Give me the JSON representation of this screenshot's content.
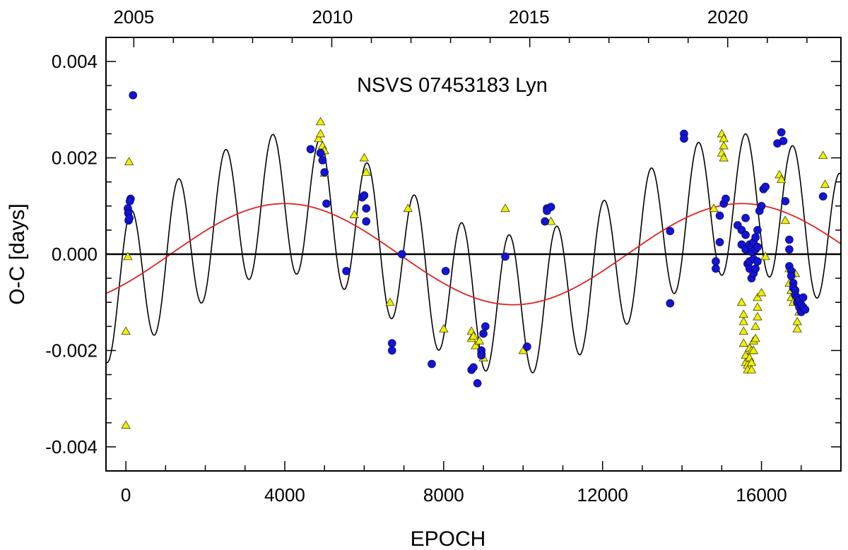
{
  "chart_data": {
    "type": "scatter",
    "title": "NSVS 07453183 Lyn",
    "xlabel": "EPOCH",
    "ylabel": "O-C [days]",
    "xlim": [
      -500,
      18000
    ],
    "ylim": [
      -0.0045,
      0.0045
    ],
    "x_ticks": [
      0,
      4000,
      8000,
      12000,
      16000
    ],
    "x_tick_labels": [
      "0",
      "4000",
      "8000",
      "12000",
      "16000"
    ],
    "y_ticks": [
      -0.004,
      -0.002,
      0.0,
      0.002,
      0.004
    ],
    "y_tick_labels": [
      "-0.004",
      "-0.002",
      "0.000",
      "0.002",
      "0.004"
    ],
    "top_axis": {
      "label": "",
      "ticks": [
        {
          "epoch": 200,
          "label": "2005"
        },
        {
          "epoch": 5200,
          "label": "2010"
        },
        {
          "epoch": 10150,
          "label": "2015"
        },
        {
          "epoch": 15150,
          "label": "2020"
        }
      ]
    },
    "grid": false,
    "zero_line": true,
    "colors": {
      "primary": "#1414d2",
      "secondary": "#f0f000",
      "secondary_edge": "#404000",
      "long_fit": "#e02020",
      "short_fit": "#000000"
    },
    "fit_curves": [
      {
        "kind": "long-period",
        "amplitude": 0.00105,
        "period_epochs": 11500,
        "phase_epoch": 4000,
        "offset": 0.0
      },
      {
        "kind": "long-plus-short",
        "amplitude": 0.00145,
        "period_epochs": 1190,
        "phase_epoch": 1320,
        "range": [
          -500,
          18000
        ]
      }
    ],
    "series": [
      {
        "marker": "circle",
        "points": [
          [
            50,
            0.00095
          ],
          [
            60,
            0.00085
          ],
          [
            70,
            0.0007
          ],
          [
            90,
            0.00075
          ],
          [
            120,
            0.00115
          ],
          [
            100,
            0.0011
          ],
          [
            180,
            0.0033
          ],
          [
            4650,
            0.00218
          ],
          [
            4900,
            0.0021
          ],
          [
            4950,
            0.00195
          ],
          [
            5000,
            0.0017
          ],
          [
            5050,
            0.00105
          ],
          [
            5550,
            -0.00035
          ],
          [
            5950,
            0.00118
          ],
          [
            6000,
            0.00122
          ],
          [
            6050,
            0.00095
          ],
          [
            6050,
            0.00068
          ],
          [
            6700,
            -0.00185
          ],
          [
            6700,
            -0.002
          ],
          [
            6950,
            0.0
          ],
          [
            7700,
            -0.00228
          ],
          [
            8050,
            -0.00035
          ],
          [
            8700,
            -0.0024
          ],
          [
            8750,
            -0.00235
          ],
          [
            8850,
            -0.00268
          ],
          [
            8950,
            -0.002
          ],
          [
            8950,
            -0.0021
          ],
          [
            9000,
            -0.00165
          ],
          [
            9050,
            -0.0015
          ],
          [
            9550,
            -5e-05
          ],
          [
            10100,
            -0.00192
          ],
          [
            10550,
            0.00068
          ],
          [
            10600,
            0.00095
          ],
          [
            10700,
            0.00098
          ],
          [
            10600,
            0.0009
          ],
          [
            13700,
            0.00048
          ],
          [
            13700,
            -0.00102
          ],
          [
            14050,
            0.0025
          ],
          [
            14050,
            0.0024
          ],
          [
            14850,
            -0.0003
          ],
          [
            14850,
            -0.00015
          ],
          [
            14950,
            0.00025
          ],
          [
            14950,
            0.0008
          ],
          [
            15050,
            0.00105
          ],
          [
            15100,
            0.00115
          ],
          [
            15400,
            0.0006
          ],
          [
            15500,
            0.0005
          ],
          [
            15500,
            0.0002
          ],
          [
            15600,
            0.00075
          ],
          [
            15600,
            0.0004
          ],
          [
            15600,
            0.0001
          ],
          [
            15650,
            -0.0002
          ],
          [
            15700,
            -0.0003
          ],
          [
            15700,
            -0.00015
          ],
          [
            15700,
            0.0002
          ],
          [
            15750,
            -0.0005
          ],
          [
            15750,
            5e-05
          ],
          [
            15750,
            0.00015
          ],
          [
            15800,
            -0.0004
          ],
          [
            15800,
            -0.0001
          ],
          [
            15800,
            0.00025
          ],
          [
            15850,
            -0.0003
          ],
          [
            15850,
            0.0001
          ],
          [
            15850,
            0.00035
          ],
          [
            15900,
            -0.00015
          ],
          [
            15900,
            0.00015
          ],
          [
            15900,
            0.0005
          ],
          [
            15950,
            0.0009
          ],
          [
            16000,
            0.001
          ],
          [
            16050,
            0.00135
          ],
          [
            16100,
            0.0014
          ],
          [
            16400,
            0.0023
          ],
          [
            16500,
            0.00253
          ],
          [
            16550,
            0.00235
          ],
          [
            16600,
            0.0011
          ],
          [
            16700,
            0.0003
          ],
          [
            16700,
            0.0001
          ],
          [
            16700,
            -0.00025
          ],
          [
            16750,
            -0.00035
          ],
          [
            16750,
            -0.00045
          ],
          [
            16800,
            -0.0006
          ],
          [
            16800,
            -0.0007
          ],
          [
            16850,
            -0.00075
          ],
          [
            16850,
            -0.00085
          ],
          [
            16900,
            -0.0009
          ],
          [
            16900,
            -0.001
          ],
          [
            16950,
            -0.00095
          ],
          [
            16950,
            -0.0011
          ],
          [
            17000,
            -0.00105
          ],
          [
            17000,
            -0.0012
          ],
          [
            17050,
            -0.0011
          ],
          [
            17050,
            -0.0009
          ],
          [
            17100,
            -0.00115
          ],
          [
            17550,
            0.0012
          ]
        ]
      },
      {
        "marker": "triangle",
        "points": [
          [
            0,
            -0.0016
          ],
          [
            0,
            -0.00355
          ],
          [
            50,
            -5e-05
          ],
          [
            80,
            0.00192
          ],
          [
            4850,
            0.0024
          ],
          [
            4900,
            0.0025
          ],
          [
            4900,
            0.00275
          ],
          [
            4950,
            0.00225
          ],
          [
            5000,
            0.00215
          ],
          [
            5000,
            0.00168
          ],
          [
            5750,
            0.00082
          ],
          [
            6000,
            0.002
          ],
          [
            6050,
            0.0017
          ],
          [
            6650,
            -0.001
          ],
          [
            7100,
            0.00095
          ],
          [
            8000,
            -0.00155
          ],
          [
            8700,
            -0.0016
          ],
          [
            8700,
            -0.00175
          ],
          [
            8750,
            -0.0017
          ],
          [
            8800,
            -0.0019
          ],
          [
            8900,
            -0.0018
          ],
          [
            8950,
            -0.002
          ],
          [
            9000,
            -0.00215
          ],
          [
            9550,
            0.00095
          ],
          [
            10000,
            -0.002
          ],
          [
            10700,
            0.00068
          ],
          [
            14800,
            0.00095
          ],
          [
            15000,
            0.0025
          ],
          [
            15050,
            0.0024
          ],
          [
            15050,
            0.00225
          ],
          [
            15000,
            0.0021
          ],
          [
            15050,
            0.002
          ],
          [
            15500,
            -0.001
          ],
          [
            15550,
            -0.00125
          ],
          [
            15550,
            -0.0014
          ],
          [
            15550,
            -0.0016
          ],
          [
            15550,
            -0.00185
          ],
          [
            15600,
            -0.0021
          ],
          [
            15600,
            -0.00225
          ],
          [
            15650,
            -0.0023
          ],
          [
            15650,
            -0.0024
          ],
          [
            15700,
            -0.00195
          ],
          [
            15700,
            -0.00215
          ],
          [
            15750,
            -0.002
          ],
          [
            15750,
            -0.00225
          ],
          [
            15750,
            -0.0024
          ],
          [
            15800,
            -0.0018
          ],
          [
            15800,
            -0.002
          ],
          [
            15850,
            -0.00175
          ],
          [
            15850,
            -0.0015
          ],
          [
            15900,
            -0.0013
          ],
          [
            15900,
            -0.0011
          ],
          [
            15900,
            -0.0009
          ],
          [
            16000,
            -0.0008
          ],
          [
            16100,
            -5e-05
          ],
          [
            16450,
            0.00165
          ],
          [
            16500,
            0.00155
          ],
          [
            16600,
            0.0007
          ],
          [
            16700,
            -0.0003
          ],
          [
            16700,
            -0.0006
          ],
          [
            16750,
            -0.00075
          ],
          [
            16750,
            -0.0009
          ],
          [
            16800,
            -0.001
          ],
          [
            16850,
            -0.0008
          ],
          [
            16850,
            -0.0004
          ],
          [
            16900,
            -0.0014
          ],
          [
            16900,
            -0.00155
          ],
          [
            16950,
            -0.0012
          ],
          [
            17000,
            -0.00105
          ],
          [
            17550,
            0.00205
          ],
          [
            17600,
            0.00145
          ]
        ]
      }
    ]
  }
}
